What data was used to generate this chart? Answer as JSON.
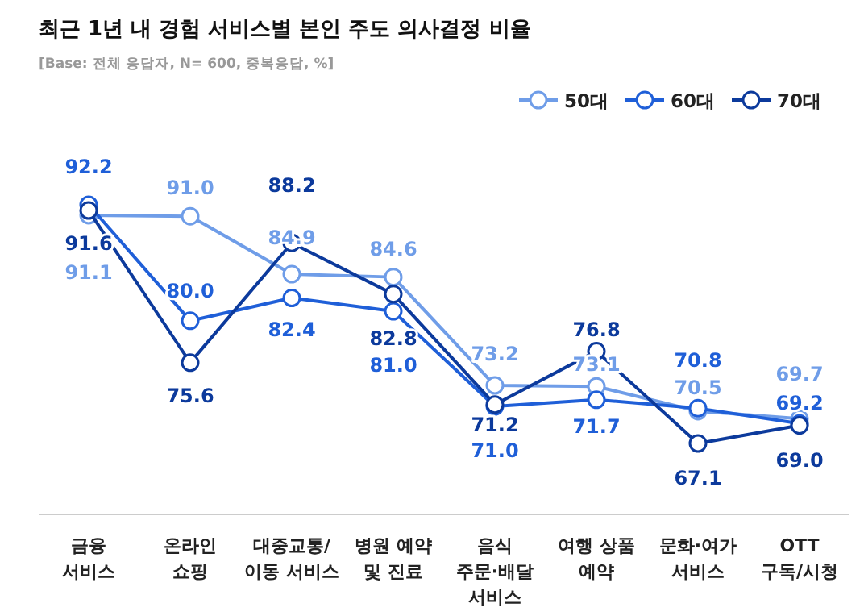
{
  "chart_data": {
    "type": "line",
    "title": "최근 1년 내 경험 서비스별 본인 주도 의사결정 비율",
    "subtitle": "[Base: 전체 응답자, N= 600, 중복응답, %]",
    "categories": [
      "금융\n서비스",
      "온라인\n쇼핑",
      "대중교통/\n이동 서비스",
      "병원 예약\n및 진료",
      "음식\n주문·배달\n서비스",
      "여행 상품\n예약",
      "문화·여가\n서비스",
      "OTT\n구독/시청"
    ],
    "series": [
      {
        "name": "50대",
        "color": "#6f9de8",
        "values": [
          91.1,
          91.0,
          84.9,
          84.6,
          73.2,
          73.1,
          70.5,
          69.7
        ],
        "value_labels": [
          "91.1",
          "91.0",
          "84.9",
          "84.6",
          "73.2",
          "73.1",
          "70.5",
          "69.7"
        ]
      },
      {
        "name": "60대",
        "color": "#1f5fd8",
        "values": [
          92.2,
          80.0,
          82.4,
          81.0,
          71.0,
          71.7,
          70.8,
          69.2
        ],
        "value_labels": [
          "92.2",
          "80.0",
          "82.4",
          "81.0",
          "71.0",
          "71.7",
          "70.8",
          "69.2"
        ]
      },
      {
        "name": "70대",
        "color": "#0c3a9c",
        "values": [
          91.6,
          75.6,
          88.2,
          82.8,
          71.2,
          76.8,
          67.1,
          69.0
        ],
        "value_labels": [
          "91.6",
          "75.6",
          "88.2",
          "82.8",
          "71.2",
          "76.8",
          "67.1",
          "69.0"
        ]
      }
    ],
    "legend": "top right",
    "marker": "circle"
  }
}
